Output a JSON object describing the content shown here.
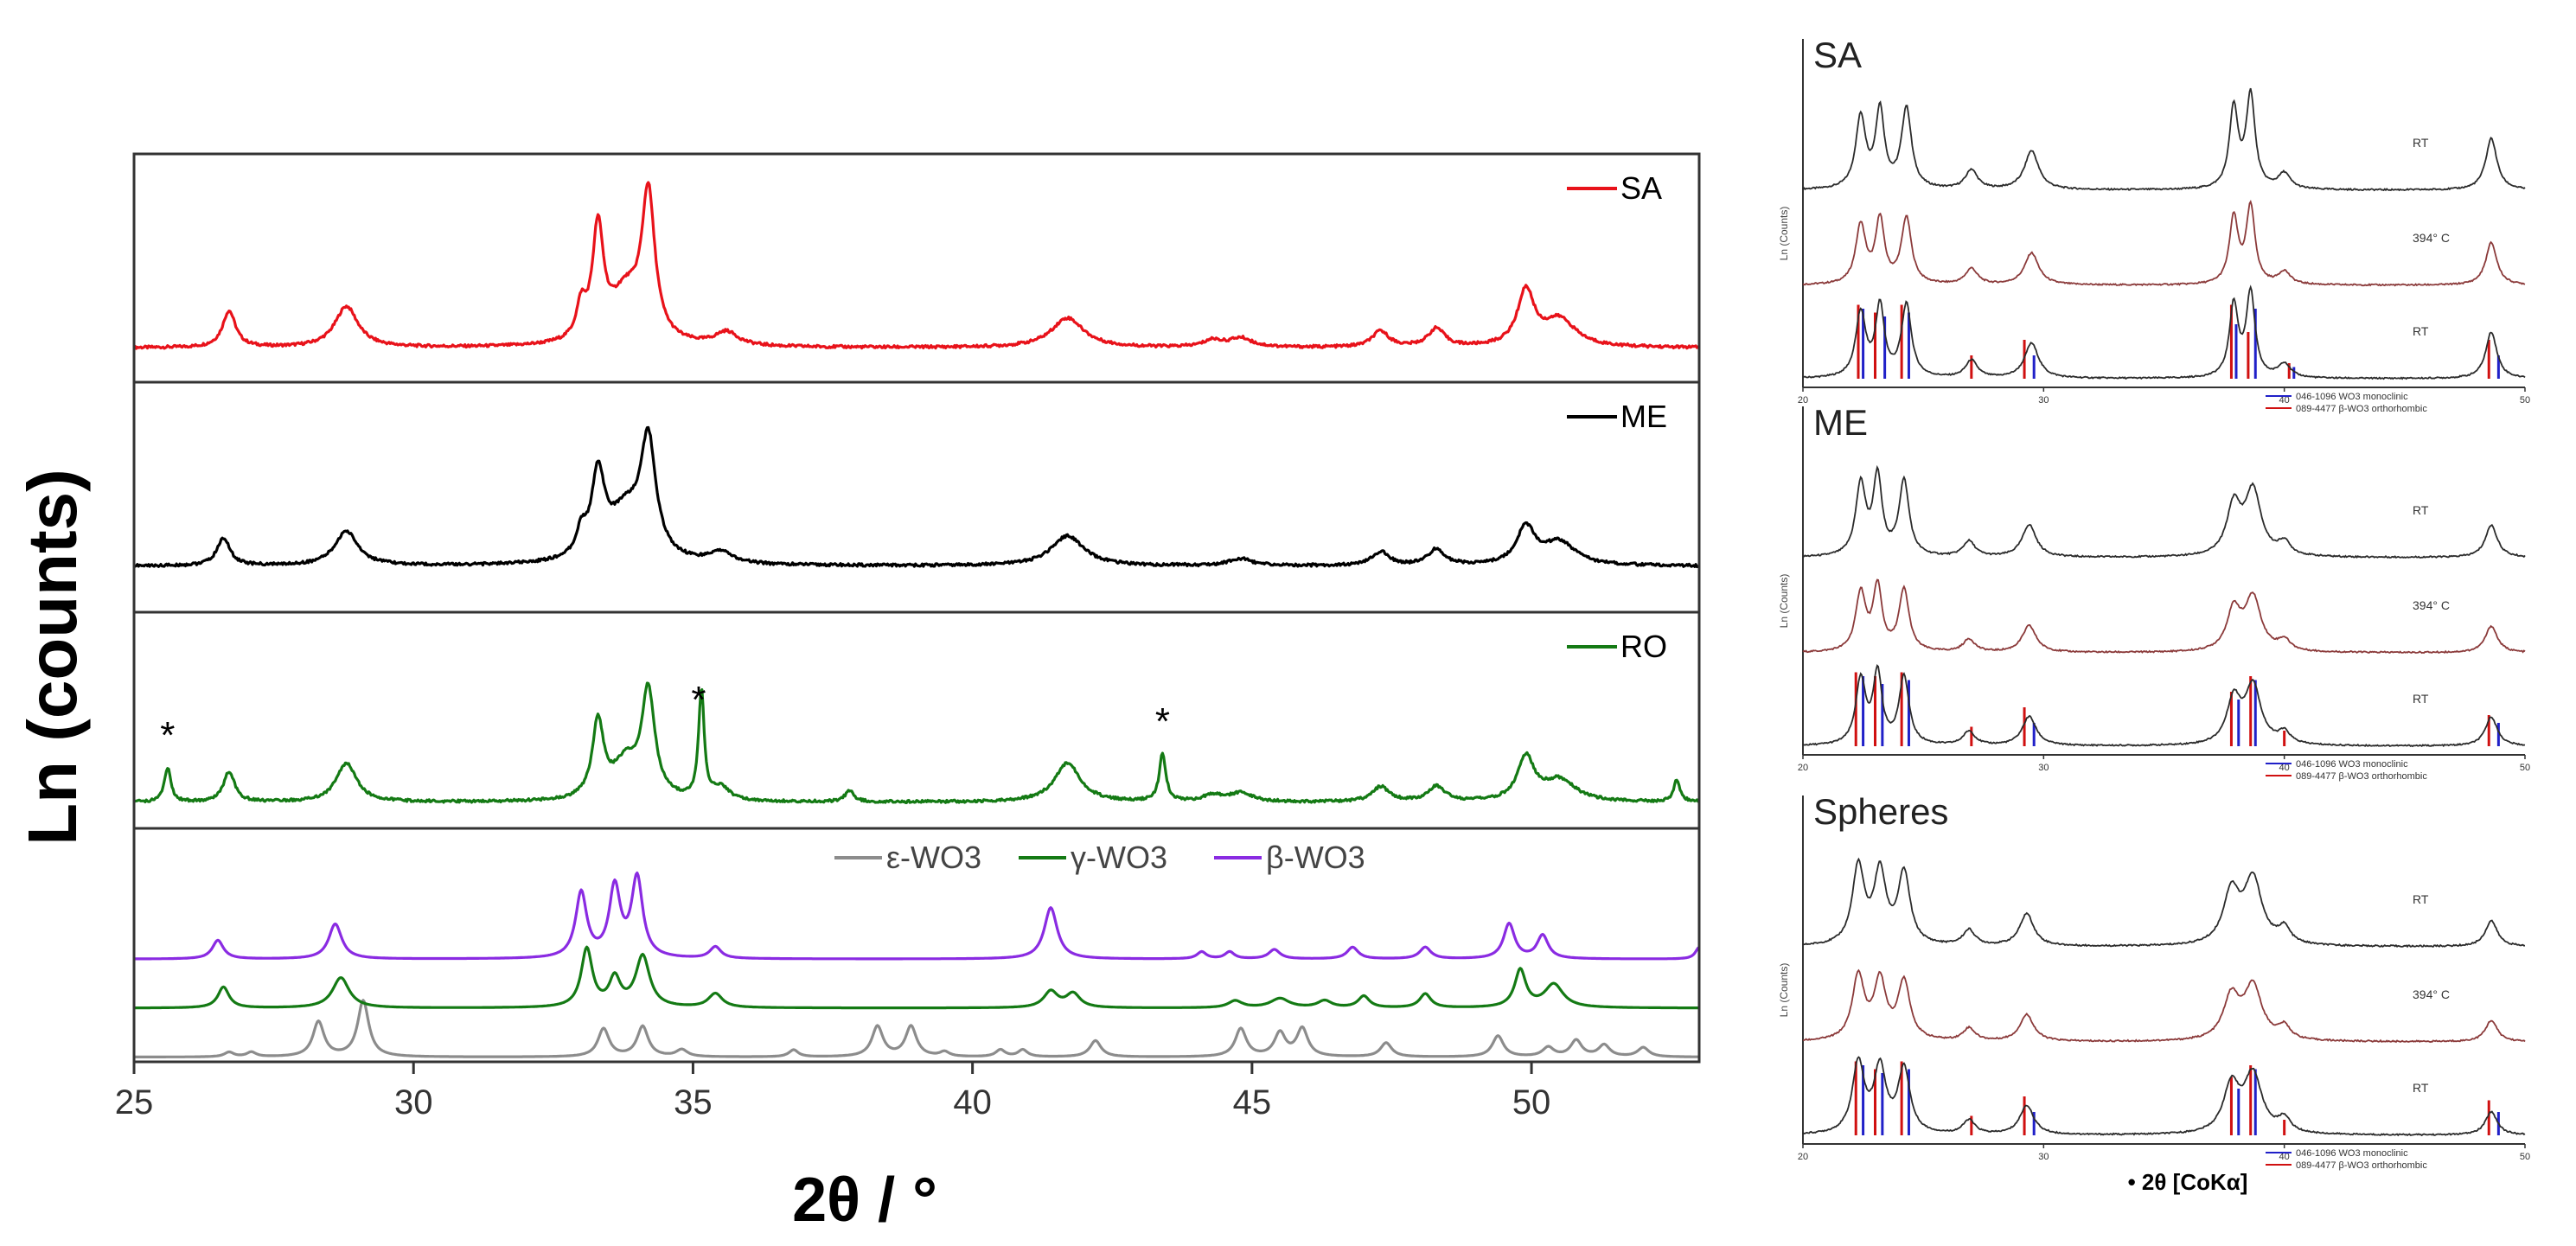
{
  "colors": {
    "SA": "#e8121a",
    "ME": "#000000",
    "RO": "#147a14",
    "epsilon": "#8c8c8c",
    "gamma": "#147a14",
    "beta": "#8a2be2",
    "dark_trace": "#2b2b2b",
    "brown_trace": "#8b3a3a",
    "ref_red": "#d01010",
    "ref_blue": "#2020c8"
  },
  "chart_data": [
    {
      "id": "left",
      "type": "line",
      "title": "",
      "xlabel": "2θ / °",
      "ylabel": "Ln (counts)",
      "xlim": [
        25,
        53
      ],
      "xticks": [
        25,
        30,
        35,
        40,
        45,
        50
      ],
      "xtick_labels": [
        "25",
        "30",
        "35",
        "40",
        "45",
        "50"
      ],
      "grid": false,
      "panels": [
        {
          "name": "SA",
          "legend": "SA",
          "color_key": "SA",
          "baseline": 0.15,
          "peaks": [
            [
              26.7,
              0.16,
              0.14
            ],
            [
              28.8,
              0.18,
              0.25
            ],
            [
              33.0,
              0.14,
              0.1
            ],
            [
              33.3,
              0.48,
              0.12
            ],
            [
              33.8,
              0.22,
              0.35
            ],
            [
              34.2,
              0.62,
              0.14
            ],
            [
              35.6,
              0.06,
              0.25
            ],
            [
              41.7,
              0.13,
              0.35
            ],
            [
              44.3,
              0.03,
              0.2
            ],
            [
              44.8,
              0.04,
              0.25
            ],
            [
              47.3,
              0.07,
              0.18
            ],
            [
              48.3,
              0.08,
              0.18
            ],
            [
              49.9,
              0.24,
              0.18
            ],
            [
              50.5,
              0.12,
              0.35
            ]
          ]
        },
        {
          "name": "ME",
          "legend": "ME",
          "color_key": "ME",
          "baseline": 0.2,
          "peaks": [
            [
              26.6,
              0.12,
              0.14
            ],
            [
              28.8,
              0.15,
              0.25
            ],
            [
              33.0,
              0.1,
              0.1
            ],
            [
              33.3,
              0.35,
              0.14
            ],
            [
              33.8,
              0.22,
              0.4
            ],
            [
              34.2,
              0.48,
              0.16
            ],
            [
              35.5,
              0.05,
              0.25
            ],
            [
              41.7,
              0.13,
              0.35
            ],
            [
              44.8,
              0.03,
              0.25
            ],
            [
              47.3,
              0.06,
              0.18
            ],
            [
              48.3,
              0.07,
              0.18
            ],
            [
              49.9,
              0.16,
              0.2
            ],
            [
              50.5,
              0.1,
              0.35
            ]
          ]
        },
        {
          "name": "RO",
          "legend": "RO",
          "color_key": "RO",
          "baseline": 0.12,
          "peaks": [
            [
              25.6,
              0.16,
              0.07
            ],
            [
              26.7,
              0.14,
              0.12
            ],
            [
              28.8,
              0.18,
              0.22
            ],
            [
              33.3,
              0.35,
              0.12
            ],
            [
              33.8,
              0.17,
              0.3
            ],
            [
              34.2,
              0.48,
              0.14
            ],
            [
              35.15,
              0.5,
              0.06
            ],
            [
              35.5,
              0.06,
              0.18
            ],
            [
              37.8,
              0.05,
              0.1
            ],
            [
              41.7,
              0.18,
              0.28
            ],
            [
              43.4,
              0.22,
              0.07
            ],
            [
              44.3,
              0.03,
              0.2
            ],
            [
              44.8,
              0.04,
              0.25
            ],
            [
              47.3,
              0.07,
              0.18
            ],
            [
              48.3,
              0.07,
              0.18
            ],
            [
              49.9,
              0.2,
              0.18
            ],
            [
              50.5,
              0.1,
              0.35
            ],
            [
              52.6,
              0.1,
              0.07
            ]
          ]
        }
      ],
      "annotations": [
        {
          "text": "*",
          "x": 25.6,
          "panel": "RO"
        },
        {
          "text": "*",
          "x": 35.1,
          "panel": "RO"
        },
        {
          "text": "*",
          "x": 43.4,
          "panel": "RO"
        }
      ],
      "reference_panel": {
        "legend": [
          "ε-WO3",
          "γ-WO3",
          "β-WO3"
        ],
        "series": [
          {
            "name": "ε-WO3",
            "color_key": "epsilon",
            "baseline": 0.02,
            "peaks": [
              [
                26.7,
                0.02,
                0.1
              ],
              [
                27.1,
                0.02,
                0.1
              ],
              [
                28.3,
                0.15,
                0.12
              ],
              [
                29.1,
                0.24,
                0.12
              ],
              [
                33.4,
                0.12,
                0.12
              ],
              [
                34.1,
                0.13,
                0.12
              ],
              [
                34.8,
                0.03,
                0.12
              ],
              [
                36.8,
                0.03,
                0.1
              ],
              [
                38.3,
                0.13,
                0.12
              ],
              [
                38.9,
                0.13,
                0.12
              ],
              [
                39.5,
                0.02,
                0.1
              ],
              [
                40.5,
                0.03,
                0.1
              ],
              [
                40.9,
                0.03,
                0.1
              ],
              [
                42.2,
                0.07,
                0.12
              ],
              [
                44.8,
                0.12,
                0.12
              ],
              [
                45.5,
                0.1,
                0.12
              ],
              [
                45.9,
                0.12,
                0.12
              ],
              [
                47.4,
                0.06,
                0.12
              ],
              [
                49.4,
                0.09,
                0.12
              ],
              [
                50.3,
                0.04,
                0.12
              ],
              [
                50.8,
                0.07,
                0.12
              ],
              [
                51.3,
                0.05,
                0.12
              ],
              [
                52.0,
                0.04,
                0.12
              ]
            ]
          },
          {
            "name": "γ-WO3",
            "color_key": "gamma",
            "baseline": 0.23,
            "peaks": [
              [
                26.6,
                0.09,
                0.12
              ],
              [
                28.7,
                0.13,
                0.18
              ],
              [
                33.1,
                0.25,
                0.12
              ],
              [
                33.6,
                0.12,
                0.12
              ],
              [
                34.1,
                0.22,
                0.15
              ],
              [
                35.4,
                0.06,
                0.15
              ],
              [
                41.4,
                0.07,
                0.15
              ],
              [
                41.8,
                0.06,
                0.15
              ],
              [
                44.7,
                0.03,
                0.15
              ],
              [
                45.5,
                0.04,
                0.2
              ],
              [
                46.3,
                0.03,
                0.15
              ],
              [
                47.0,
                0.05,
                0.12
              ],
              [
                48.1,
                0.06,
                0.12
              ],
              [
                49.8,
                0.16,
                0.12
              ],
              [
                50.4,
                0.1,
                0.2
              ]
            ]
          },
          {
            "name": "β-WO3",
            "color_key": "beta",
            "baseline": 0.44,
            "peaks": [
              [
                26.5,
                0.08,
                0.12
              ],
              [
                28.6,
                0.15,
                0.14
              ],
              [
                33.0,
                0.28,
                0.12
              ],
              [
                33.6,
                0.3,
                0.12
              ],
              [
                34.0,
                0.34,
                0.12
              ],
              [
                35.4,
                0.05,
                0.12
              ],
              [
                41.4,
                0.22,
                0.14
              ],
              [
                44.1,
                0.03,
                0.1
              ],
              [
                44.6,
                0.03,
                0.1
              ],
              [
                45.4,
                0.04,
                0.12
              ],
              [
                46.8,
                0.05,
                0.12
              ],
              [
                48.1,
                0.05,
                0.12
              ],
              [
                49.6,
                0.15,
                0.12
              ],
              [
                50.2,
                0.1,
                0.12
              ],
              [
                53.0,
                0.05,
                0.08
              ]
            ]
          }
        ]
      }
    },
    {
      "id": "right",
      "type": "line",
      "xlim": [
        20,
        50
      ],
      "xticks": [
        20,
        30,
        40,
        50
      ],
      "xtick_labels": [
        "20",
        "30",
        "40",
        "50"
      ],
      "xlabel": "• 2θ [CoKα]",
      "ylabel": "Ln (Counts)",
      "grid": false,
      "panels": [
        {
          "title": "SA",
          "trace_labels": [
            "RT",
            "394° C",
            "RT"
          ],
          "ref_legend": [
            "046-1096 WO3 monoclinic",
            "089-4477 β-WO3 orthorhombic"
          ],
          "peaks": [
            [
              22.4,
              0.55,
              0.25
            ],
            [
              23.2,
              0.6,
              0.22
            ],
            [
              24.3,
              0.62,
              0.25
            ],
            [
              27.0,
              0.15,
              0.3
            ],
            [
              29.5,
              0.3,
              0.35
            ],
            [
              37.9,
              0.62,
              0.22
            ],
            [
              38.6,
              0.72,
              0.22
            ],
            [
              40.0,
              0.12,
              0.3
            ],
            [
              48.6,
              0.4,
              0.28
            ]
          ],
          "red_ref": [
            [
              22.3,
              0.95
            ],
            [
              23.0,
              0.85
            ],
            [
              24.1,
              0.95
            ],
            [
              27.0,
              0.3
            ],
            [
              29.2,
              0.5
            ],
            [
              37.8,
              0.95
            ],
            [
              38.5,
              0.6
            ],
            [
              40.2,
              0.2
            ],
            [
              48.5,
              0.5
            ]
          ],
          "blue_ref": [
            [
              22.5,
              0.9
            ],
            [
              23.4,
              0.8
            ],
            [
              24.4,
              0.85
            ],
            [
              29.6,
              0.3
            ],
            [
              38.0,
              0.7
            ],
            [
              38.8,
              0.9
            ],
            [
              40.4,
              0.15
            ],
            [
              48.9,
              0.3
            ]
          ]
        },
        {
          "title": "ME",
          "trace_labels": [
            "RT",
            "394° C",
            "RT"
          ],
          "ref_legend": [
            "046-1096 WO3 monoclinic",
            "089-4477 β-WO3 orthorhombic"
          ],
          "peaks": [
            [
              22.4,
              0.55,
              0.25
            ],
            [
              23.1,
              0.6,
              0.22
            ],
            [
              24.2,
              0.58,
              0.25
            ],
            [
              26.9,
              0.12,
              0.3
            ],
            [
              29.4,
              0.25,
              0.35
            ],
            [
              37.9,
              0.38,
              0.35
            ],
            [
              38.7,
              0.5,
              0.4
            ],
            [
              40.0,
              0.1,
              0.3
            ],
            [
              48.6,
              0.25,
              0.3
            ]
          ],
          "red_ref": [
            [
              22.2,
              0.95
            ],
            [
              23.0,
              0.9
            ],
            [
              24.1,
              0.95
            ],
            [
              27.0,
              0.25
            ],
            [
              29.2,
              0.5
            ],
            [
              37.8,
              0.7
            ],
            [
              38.6,
              0.9
            ],
            [
              40.0,
              0.2
            ],
            [
              48.5,
              0.4
            ]
          ],
          "blue_ref": [
            [
              22.5,
              0.9
            ],
            [
              23.3,
              0.8
            ],
            [
              24.4,
              0.85
            ],
            [
              29.6,
              0.3
            ],
            [
              38.1,
              0.6
            ],
            [
              38.8,
              0.85
            ],
            [
              48.9,
              0.3
            ]
          ]
        },
        {
          "title": "Spheres",
          "trace_labels": [
            "RT",
            "394° C",
            "RT"
          ],
          "ref_legend": [
            "046-1096 WO3 monoclinic",
            "089-4477 β-WO3 orthorhombic"
          ],
          "peaks": [
            [
              22.3,
              0.6,
              0.3
            ],
            [
              23.2,
              0.55,
              0.3
            ],
            [
              24.2,
              0.55,
              0.3
            ],
            [
              26.9,
              0.12,
              0.3
            ],
            [
              29.3,
              0.25,
              0.35
            ],
            [
              37.8,
              0.4,
              0.4
            ],
            [
              38.7,
              0.5,
              0.45
            ],
            [
              40.0,
              0.12,
              0.3
            ],
            [
              48.6,
              0.2,
              0.3
            ]
          ],
          "red_ref": [
            [
              22.2,
              0.95
            ],
            [
              23.0,
              0.85
            ],
            [
              24.1,
              0.95
            ],
            [
              27.0,
              0.25
            ],
            [
              29.2,
              0.5
            ],
            [
              37.8,
              0.75
            ],
            [
              38.6,
              0.9
            ],
            [
              40.0,
              0.2
            ],
            [
              48.5,
              0.45
            ]
          ],
          "blue_ref": [
            [
              22.5,
              0.9
            ],
            [
              23.3,
              0.8
            ],
            [
              24.4,
              0.85
            ],
            [
              29.6,
              0.3
            ],
            [
              38.1,
              0.6
            ],
            [
              38.8,
              0.85
            ],
            [
              48.9,
              0.3
            ]
          ]
        }
      ]
    }
  ]
}
